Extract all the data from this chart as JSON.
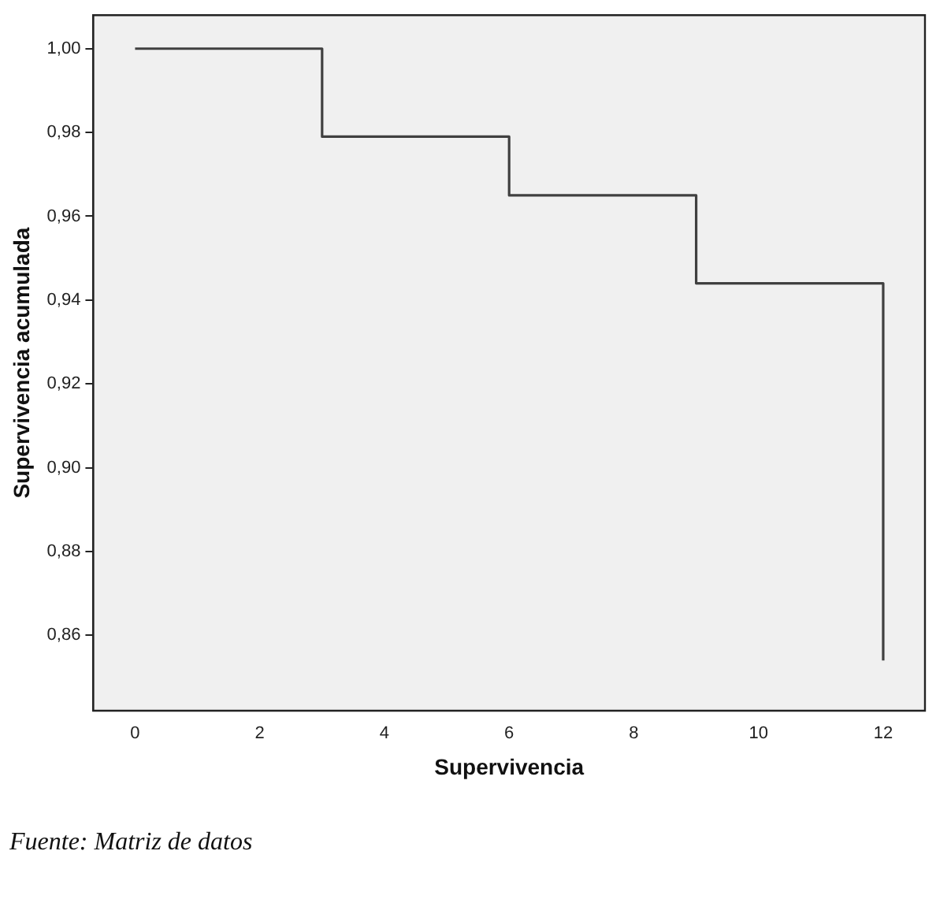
{
  "chart_data": {
    "type": "step",
    "xlabel": "Supervivencia",
    "ylabel": "Supervivencia acumulada",
    "x": [
      0,
      3,
      6,
      9,
      12
    ],
    "series": [
      {
        "color": "#404040",
        "values": [
          1.0,
          0.979,
          0.965,
          0.944,
          0.854
        ]
      }
    ],
    "xlim": [
      -0.67,
      12.67
    ],
    "xticks": [
      0,
      2,
      4,
      6,
      8,
      10,
      12
    ],
    "ylim": [
      0.842,
      1.008
    ],
    "yticks": [
      {
        "value": 0.86,
        "label": "0,86"
      },
      {
        "value": 0.88,
        "label": "0,88"
      },
      {
        "value": 0.9,
        "label": "0,90"
      },
      {
        "value": 0.92,
        "label": "0,92"
      },
      {
        "value": 0.94,
        "label": "0,94"
      },
      {
        "value": 0.96,
        "label": "0,96"
      },
      {
        "value": 0.98,
        "label": "0,98"
      },
      {
        "value": 1.0,
        "label": "1,00"
      }
    ],
    "grid": false,
    "legend": false,
    "marker": "none",
    "line_style": "solid",
    "annotations": [
      "Fuente: Matriz de datos"
    ]
  }
}
